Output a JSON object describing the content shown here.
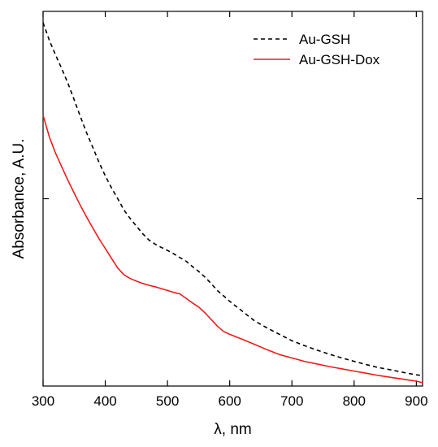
{
  "chart_data": {
    "type": "line",
    "xlabel": "λ, nm",
    "ylabel": "Absorbance, A.U.",
    "xlim": [
      300,
      910
    ],
    "xticks": [
      300,
      400,
      500,
      600,
      700,
      800,
      900
    ],
    "ylim": [
      0,
      100
    ],
    "y_tick_labels_shown": false,
    "legend_position": "top-right",
    "series": [
      {
        "name": "Au-GSH",
        "color": "#000000",
        "style": "dashed",
        "x": [
          300,
          310,
          320,
          330,
          340,
          350,
          360,
          370,
          380,
          390,
          400,
          410,
          420,
          430,
          440,
          450,
          460,
          470,
          480,
          490,
          500,
          510,
          520,
          530,
          540,
          550,
          560,
          570,
          580,
          590,
          600,
          620,
          640,
          660,
          680,
          700,
          720,
          740,
          760,
          780,
          800,
          820,
          840,
          860,
          880,
          900,
          910
        ],
        "y": [
          97.0,
          92.3,
          88.4,
          84.7,
          80.8,
          76.4,
          71.9,
          67.6,
          63.7,
          59.7,
          56.1,
          52.9,
          50.0,
          47.0,
          44.7,
          42.7,
          40.7,
          39.0,
          37.9,
          37.0,
          36.2,
          35.3,
          34.3,
          33.3,
          31.9,
          30.6,
          29.1,
          27.4,
          25.5,
          24.1,
          22.6,
          20.0,
          17.4,
          15.5,
          13.8,
          12.1,
          10.8,
          9.6,
          8.5,
          7.5,
          6.6,
          5.7,
          4.9,
          4.3,
          3.6,
          3.0,
          2.8
        ]
      },
      {
        "name": "Au-GSH-Dox",
        "color": "#ee1c1c",
        "style": "solid",
        "x": [
          300,
          310,
          320,
          330,
          340,
          350,
          360,
          370,
          380,
          390,
          400,
          410,
          420,
          430,
          440,
          450,
          460,
          470,
          480,
          490,
          500,
          510,
          520,
          530,
          540,
          550,
          560,
          570,
          580,
          590,
          600,
          620,
          640,
          660,
          680,
          700,
          720,
          740,
          760,
          780,
          800,
          820,
          840,
          860,
          880,
          900,
          910
        ],
        "y": [
          72.3,
          66.5,
          62.2,
          58.5,
          54.9,
          51.5,
          48.2,
          45.1,
          42.2,
          39.3,
          36.7,
          34.1,
          31.5,
          29.7,
          28.7,
          28.0,
          27.4,
          26.9,
          26.5,
          26.0,
          25.5,
          25.0,
          24.6,
          23.4,
          22.2,
          21.1,
          19.6,
          17.8,
          16.0,
          14.6,
          13.8,
          12.5,
          11.1,
          9.7,
          8.4,
          7.5,
          6.6,
          5.9,
          5.2,
          4.6,
          4.0,
          3.4,
          2.8,
          2.3,
          1.8,
          1.3,
          0.9
        ]
      }
    ]
  }
}
